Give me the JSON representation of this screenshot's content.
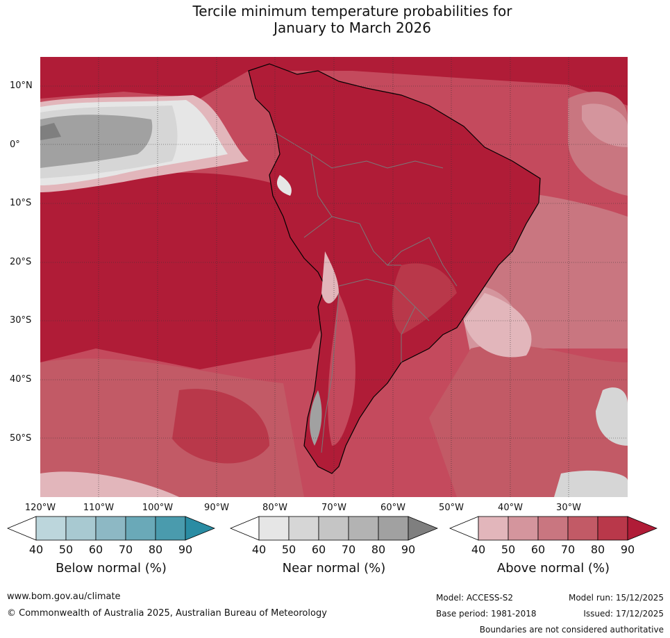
{
  "title_line1": "Tercile minimum temperature probabilities for",
  "title_line2": "January to March 2026",
  "lat_labels": [
    "10°N",
    "0°",
    "10°S",
    "20°S",
    "30°S",
    "40°S",
    "50°S"
  ],
  "lon_labels": [
    "120°W",
    "110°W",
    "100°W",
    "90°W",
    "80°W",
    "70°W",
    "60°W",
    "50°W",
    "40°W",
    "30°W"
  ],
  "colorbars": [
    {
      "title": "Below normal (%)",
      "ticks": [
        "40",
        "50",
        "60",
        "70",
        "80",
        "90"
      ],
      "colors": [
        "#ffffff",
        "#bcd6dc",
        "#a8c9d1",
        "#8db8c4",
        "#6aa9b8",
        "#4a9bad",
        "#2a8ca3"
      ]
    },
    {
      "title": "Near normal (%)",
      "ticks": [
        "40",
        "50",
        "60",
        "70",
        "80",
        "90"
      ],
      "colors": [
        "#ffffff",
        "#e6e6e6",
        "#d6d6d6",
        "#c5c5c5",
        "#b3b3b3",
        "#a1a1a1",
        "#7f7f7f"
      ]
    },
    {
      "title": "Above normal (%)",
      "ticks": [
        "40",
        "50",
        "60",
        "70",
        "80",
        "90"
      ],
      "colors": [
        "#ffffff",
        "#e2b6bb",
        "#d4959d",
        "#c97680",
        "#c25a66",
        "#b9384a",
        "#b01c37"
      ]
    }
  ],
  "footer": {
    "website": "www.bom.gov.au/climate",
    "copyright": "© Commonwealth of Australia 2025, Australian Bureau of Meteorology",
    "model": "Model: ACCESS-S2",
    "base_period": "Base period: 1981-2018",
    "model_run": "Model run: 15/12/2025",
    "issued": "Issued: 17/12/2025",
    "disclaimer": "Boundaries are not considered authoritative"
  }
}
